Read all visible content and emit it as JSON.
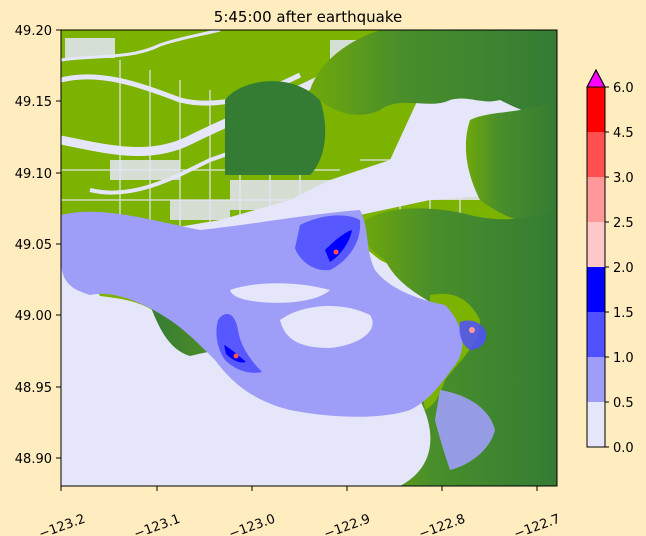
{
  "title": "5:45:00 after earthquake",
  "colors": {
    "figure_background": "#ffedc0",
    "water_0_05": "#e6e6fa",
    "water_05_10": "#9e9ef8",
    "water_10_15": "#5050ff",
    "water_15_20": "#0000ff",
    "water_20_25": "#ffc8c8",
    "water_25_30": "#ff9999",
    "water_30_45": "#ff5050",
    "water_45_60": "#ff0000",
    "water_over_60": "#ff00ff",
    "land_low": "#7cb200",
    "land_high": "#347c34"
  },
  "map": {
    "x_ticks": [
      "−123.2",
      "−123.1",
      "−123.0",
      "−122.9",
      "−122.8",
      "−122.7"
    ],
    "y_ticks": [
      "49.20",
      "49.15",
      "49.10",
      "49.05",
      "49.00",
      "48.95",
      "48.90"
    ],
    "x_range": [
      -123.2,
      -122.69
    ],
    "y_range": [
      48.88,
      49.2
    ]
  },
  "colorbar": {
    "tick_labels": [
      "0.0",
      "0.5",
      "1.0",
      "1.5",
      "2.0",
      "2.5",
      "3.0",
      "4.5",
      "6.0"
    ],
    "extend": "max"
  }
}
